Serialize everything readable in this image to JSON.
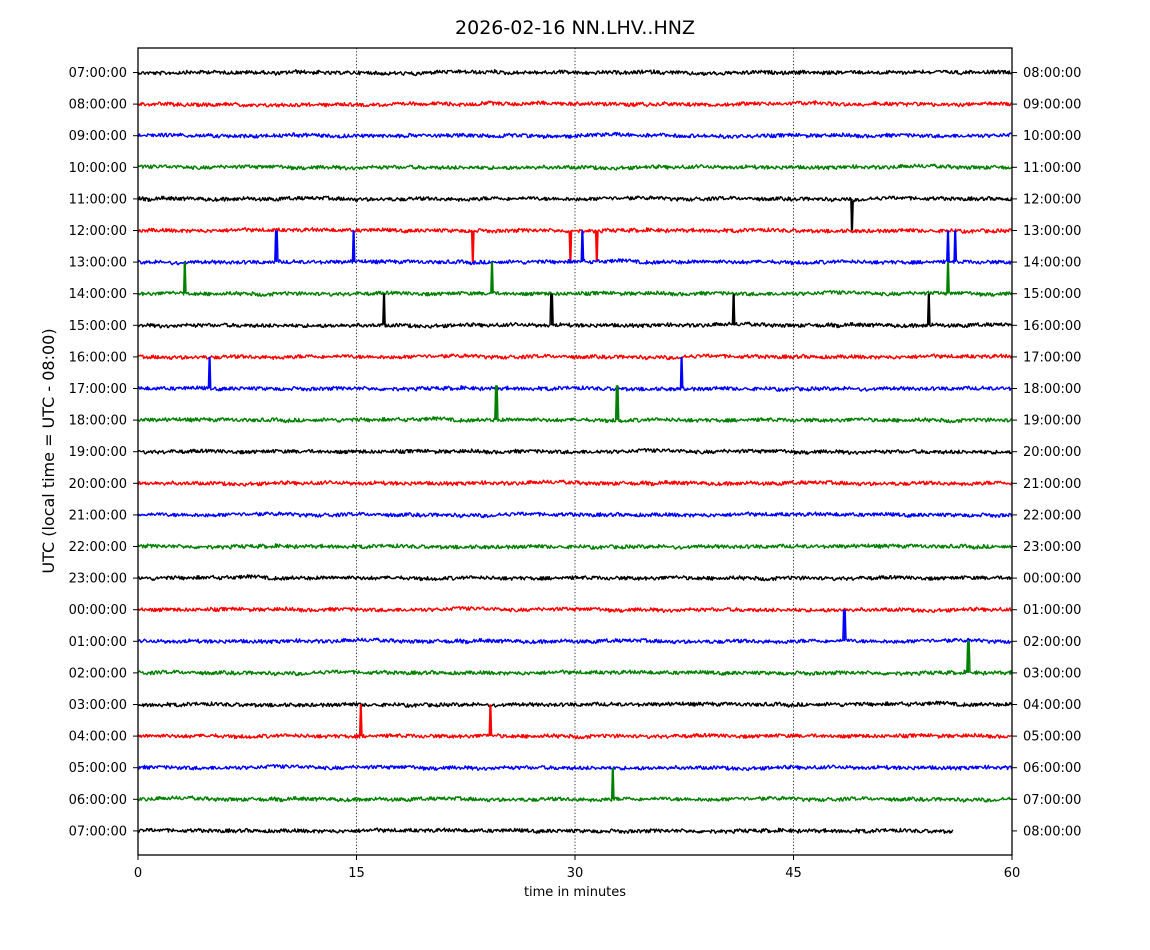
{
  "chart_data": {
    "type": "line",
    "title": "2026-02-16 NN.LHV..HNZ",
    "xlabel": "time in minutes",
    "ylabel": "UTC (local time = UTC - 08:00)",
    "xlim": [
      0,
      60
    ],
    "x_ticks": [
      "0",
      "15",
      "30",
      "45",
      "60"
    ],
    "x_tick_values": [
      0,
      15,
      30,
      45,
      60
    ],
    "grid": "vertical dotted at 15, 30, 45",
    "colors": [
      "#000000",
      "#ff0000",
      "#0000ff",
      "#008000"
    ],
    "rows": [
      {
        "left": "07:00:00",
        "right": "08:00:00",
        "spikes": []
      },
      {
        "left": "08:00:00",
        "right": "09:00:00",
        "spikes": []
      },
      {
        "left": "09:00:00",
        "right": "10:00:00",
        "spikes": []
      },
      {
        "left": "10:00:00",
        "right": "11:00:00",
        "spikes": []
      },
      {
        "left": "11:00:00",
        "right": "12:00:00",
        "spikes": [
          {
            "x": 49.0,
            "amp": 1.0
          }
        ]
      },
      {
        "left": "12:00:00",
        "right": "13:00:00",
        "spikes": [
          {
            "x": 23.0,
            "amp": 1.0
          },
          {
            "x": 29.7,
            "amp": 1.0
          },
          {
            "x": 31.5,
            "amp": 1.0
          }
        ]
      },
      {
        "left": "13:00:00",
        "right": "14:00:00",
        "spikes": [
          {
            "x": 9.5,
            "amp": -1.0
          },
          {
            "x": 14.8,
            "amp": -1.0
          },
          {
            "x": 30.5,
            "amp": -1.0
          },
          {
            "x": 55.6,
            "amp": -1.0
          },
          {
            "x": 56.1,
            "amp": -1.0
          }
        ]
      },
      {
        "left": "14:00:00",
        "right": "15:00:00",
        "spikes": [
          {
            "x": 3.2,
            "amp": -1.0
          },
          {
            "x": 24.3,
            "amp": -1.0
          },
          {
            "x": 55.6,
            "amp": -1.0
          }
        ]
      },
      {
        "left": "15:00:00",
        "right": "16:00:00",
        "spikes": [
          {
            "x": 16.9,
            "amp": -1.0
          },
          {
            "x": 28.4,
            "amp": -1.0
          },
          {
            "x": 40.9,
            "amp": -1.0
          },
          {
            "x": 54.3,
            "amp": -1.0
          }
        ]
      },
      {
        "left": "16:00:00",
        "right": "17:00:00",
        "spikes": []
      },
      {
        "left": "17:00:00",
        "right": "18:00:00",
        "spikes": [
          {
            "x": 4.9,
            "amp": -1.0
          },
          {
            "x": 37.3,
            "amp": -1.0
          }
        ]
      },
      {
        "left": "18:00:00",
        "right": "19:00:00",
        "spikes": [
          {
            "x": 24.6,
            "amp": -1.1
          },
          {
            "x": 32.9,
            "amp": -1.1
          }
        ]
      },
      {
        "left": "19:00:00",
        "right": "20:00:00",
        "spikes": []
      },
      {
        "left": "20:00:00",
        "right": "21:00:00",
        "spikes": []
      },
      {
        "left": "21:00:00",
        "right": "22:00:00",
        "spikes": []
      },
      {
        "left": "22:00:00",
        "right": "23:00:00",
        "spikes": []
      },
      {
        "left": "23:00:00",
        "right": "00:00:00",
        "spikes": []
      },
      {
        "left": "00:00:00",
        "right": "01:00:00",
        "spikes": []
      },
      {
        "left": "01:00:00",
        "right": "02:00:00",
        "spikes": [
          {
            "x": 48.5,
            "amp": -1.0
          }
        ]
      },
      {
        "left": "02:00:00",
        "right": "03:00:00",
        "spikes": [
          {
            "x": 57.0,
            "amp": -1.0
          }
        ]
      },
      {
        "left": "03:00:00",
        "right": "04:00:00",
        "spikes": []
      },
      {
        "left": "04:00:00",
        "right": "05:00:00",
        "spikes": [
          {
            "x": 15.3,
            "amp": -1.0
          },
          {
            "x": 24.2,
            "amp": -1.0
          }
        ]
      },
      {
        "left": "05:00:00",
        "right": "06:00:00",
        "spikes": []
      },
      {
        "left": "06:00:00",
        "right": "07:00:00",
        "spikes": [
          {
            "x": 32.6,
            "amp": -1.0
          }
        ]
      },
      {
        "left": "07:00:00",
        "right": "08:00:00",
        "spikes": [],
        "end_minute": 56
      }
    ]
  }
}
